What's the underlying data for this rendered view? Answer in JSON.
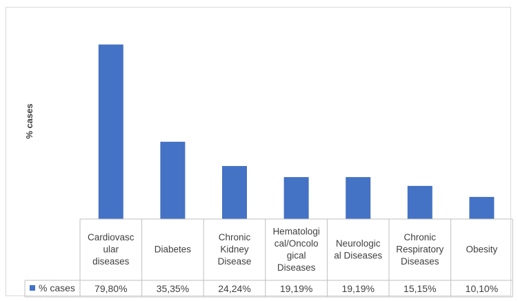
{
  "chart_data": {
    "type": "bar",
    "ylabel": "% cases",
    "categories": [
      "Cardiovascular diseases",
      "Diabetes",
      "Chronic Kidney Disease",
      "Hematological/Oncological Diseases",
      "Neurological Diseases",
      "Chronic Respiratory Diseases",
      "Obesity"
    ],
    "category_lines": [
      [
        "Cardiovasc",
        "ular",
        "diseases"
      ],
      [
        "Diabetes"
      ],
      [
        "Chronic",
        "Kidney",
        "Disease"
      ],
      [
        "Hematologi",
        "cal/Oncolo",
        "gical",
        "Diseases"
      ],
      [
        "Neurologic",
        "al Diseases"
      ],
      [
        "Chronic",
        "Respiratory",
        "Diseases"
      ],
      [
        "Obesity"
      ]
    ],
    "series": [
      {
        "name": "% cases",
        "values": [
          79.8,
          35.35,
          24.24,
          19.19,
          19.19,
          15.15,
          10.1
        ],
        "labels": [
          "79,80%",
          "35,35%",
          "24,24%",
          "19,19%",
          "19,19%",
          "15,15%",
          "10,10%"
        ]
      }
    ],
    "ylim": [
      0,
      80
    ],
    "color": "#4472c4",
    "legend": "table",
    "grid": false
  }
}
